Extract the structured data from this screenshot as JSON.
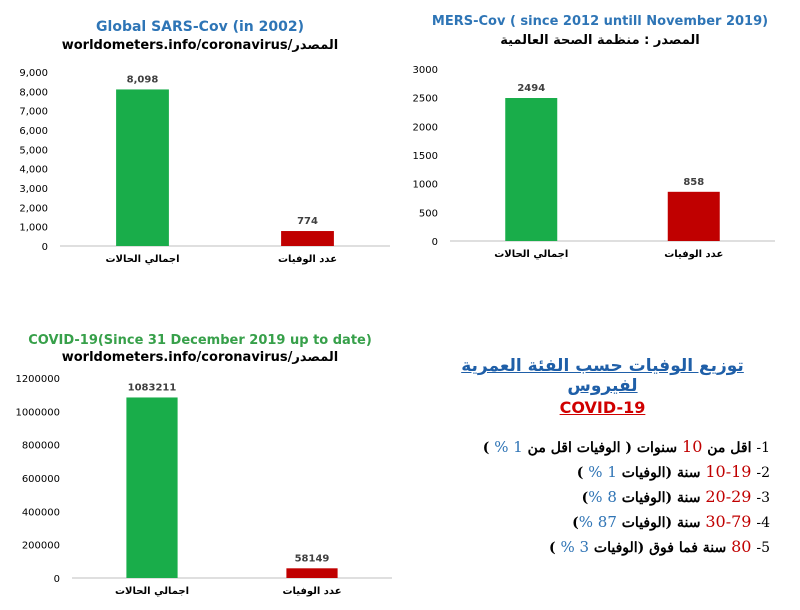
{
  "chart_data": [
    {
      "type": "bar",
      "title": "Global SARS-Cov (in 2002)",
      "subtitle": "worldometers.info/coronavirus/المصدر",
      "categories": [
        "اجمالي الحالات",
        "عدد الوفيات"
      ],
      "values": [
        8098,
        774
      ],
      "data_labels": [
        "8,098",
        "774"
      ],
      "ylim": [
        0,
        9000
      ],
      "yticks": [
        "0",
        "1,000",
        "2,000",
        "3,000",
        "4,000",
        "5,000",
        "6,000",
        "7,000",
        "8,000",
        "9,000"
      ],
      "colors": [
        "#19ad4a",
        "#c00000"
      ],
      "title_color": "#2e75b6"
    },
    {
      "type": "bar",
      "title": "MERS-Cov ( since 2012 untill November 2019)",
      "subtitle": "المصدر : منظمة الصحة العالمية",
      "categories": [
        "اجمالي الحالات",
        "عدد الوفيات"
      ],
      "values": [
        2494,
        858
      ],
      "data_labels": [
        "2494",
        "858"
      ],
      "ylim": [
        0,
        3000
      ],
      "yticks": [
        "0",
        "500",
        "1000",
        "1500",
        "2000",
        "2500",
        "3000"
      ],
      "colors": [
        "#19ad4a",
        "#c00000"
      ],
      "title_color": "#2e75b6"
    },
    {
      "type": "bar",
      "title": "COVID-19(Since 31 December 2019 up to date)",
      "subtitle": "worldometers.info/coronavirus/المصدر",
      "categories": [
        "اجمالي الحالات",
        "عدد الوفيات"
      ],
      "values": [
        1083211,
        58149
      ],
      "data_labels": [
        "1083211",
        "58149"
      ],
      "ylim": [
        0,
        1200000
      ],
      "yticks": [
        "0",
        "200000",
        "400000",
        "600000",
        "800000",
        "1000000",
        "1200000"
      ],
      "colors": [
        "#19ad4a",
        "#c00000"
      ],
      "title_color": "#37a04a"
    }
  ],
  "info": {
    "title": "توزيع الوفيات حسب الفئة العمرية لفيروس",
    "subtitle": "COVID-19",
    "lines": [
      {
        "num": "1-",
        "p1": " اقل من ",
        "red": "10",
        "p2": " سنوات ( الوفيات اقل من ",
        "blue": "1 %",
        "p3": " )"
      },
      {
        "num": "2-",
        "p1": " ",
        "red": "10-19",
        "p2": " سنة (الوفيات ",
        "blue": "1 %",
        "p3": " )"
      },
      {
        "num": "3-",
        "p1": " ",
        "red": "20-29",
        "p2": " سنة (الوفيات ",
        "blue": "8 %",
        "p3": ")"
      },
      {
        "num": "4-",
        "p1": " ",
        "red": "30-79",
        "p2": " سنة (الوفيات ",
        "blue": "87 %",
        "p3": ")"
      },
      {
        "num": "5-",
        "p1": " ",
        "red": "80",
        "p2": " سنة فما فوق (الوفيات ",
        "blue": "3 %",
        "p3": " )"
      }
    ]
  }
}
